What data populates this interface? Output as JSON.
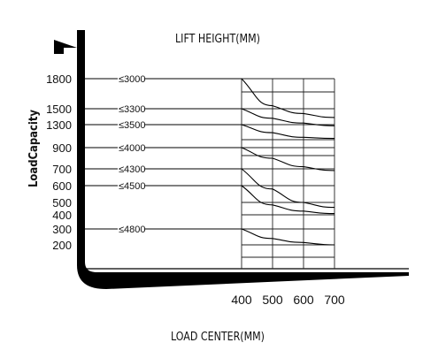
{
  "chart_data": {
    "type": "line",
    "title": "LIFT HEIGHT(MM)",
    "xlabel": "LOAD CENTER(MM)",
    "ylabel": "LoadCapacity",
    "x_ticks": [
      400,
      500,
      600,
      700
    ],
    "y_ticks": [
      1800,
      1500,
      1300,
      900,
      700,
      600,
      500,
      400,
      300,
      200
    ],
    "grid": true,
    "series": [
      {
        "name": "≤3000",
        "x": [
          400,
          500,
          600,
          700
        ],
        "y": [
          1800,
          1530,
          1440,
          1390
        ]
      },
      {
        "name": "≤3300",
        "x": [
          400,
          500,
          600,
          700
        ],
        "y": [
          1500,
          1380,
          1320,
          1280
        ]
      },
      {
        "name": "≤3500",
        "x": [
          400,
          500,
          600,
          700
        ],
        "y": [
          1300,
          1160,
          1080,
          1060
        ]
      },
      {
        "name": "≤4000",
        "x": [
          400,
          500,
          600,
          700
        ],
        "y": [
          900,
          800,
          720,
          690
        ]
      },
      {
        "name": "≤4300",
        "x": [
          400,
          500,
          600,
          700
        ],
        "y": [
          700,
          580,
          500,
          460
        ]
      },
      {
        "name": "≤4500",
        "x": [
          400,
          500,
          600,
          700
        ],
        "y": [
          600,
          480,
          430,
          410
        ]
      },
      {
        "name": "≤4800",
        "x": [
          400,
          500,
          600,
          700
        ],
        "y": [
          300,
          240,
          215,
          200
        ]
      }
    ]
  }
}
